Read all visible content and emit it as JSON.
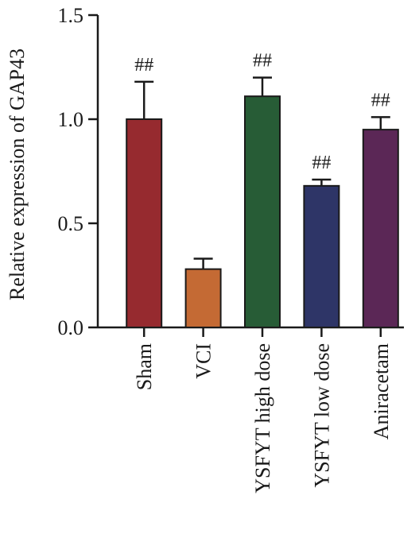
{
  "chart_data": {
    "type": "bar",
    "ylabel": "Relative expression of GAP43",
    "ylim": [
      0,
      1.5
    ],
    "yticks": [
      "0.0",
      "0.5",
      "1.0",
      "1.5"
    ],
    "categories": [
      "Sham",
      "VCI",
      "YSFYT high dose",
      "YSFYT low dose",
      "Aniracetam"
    ],
    "values": [
      1.0,
      0.28,
      1.11,
      0.68,
      0.95
    ],
    "errors": [
      0.18,
      0.05,
      0.09,
      0.03,
      0.06
    ],
    "annotations": [
      "##",
      "",
      "##",
      "##",
      "##"
    ],
    "colors": [
      "#962a2f",
      "#c46a34",
      "#275c36",
      "#2e3567",
      "#5b2756"
    ],
    "grid": false,
    "legend": "none"
  }
}
